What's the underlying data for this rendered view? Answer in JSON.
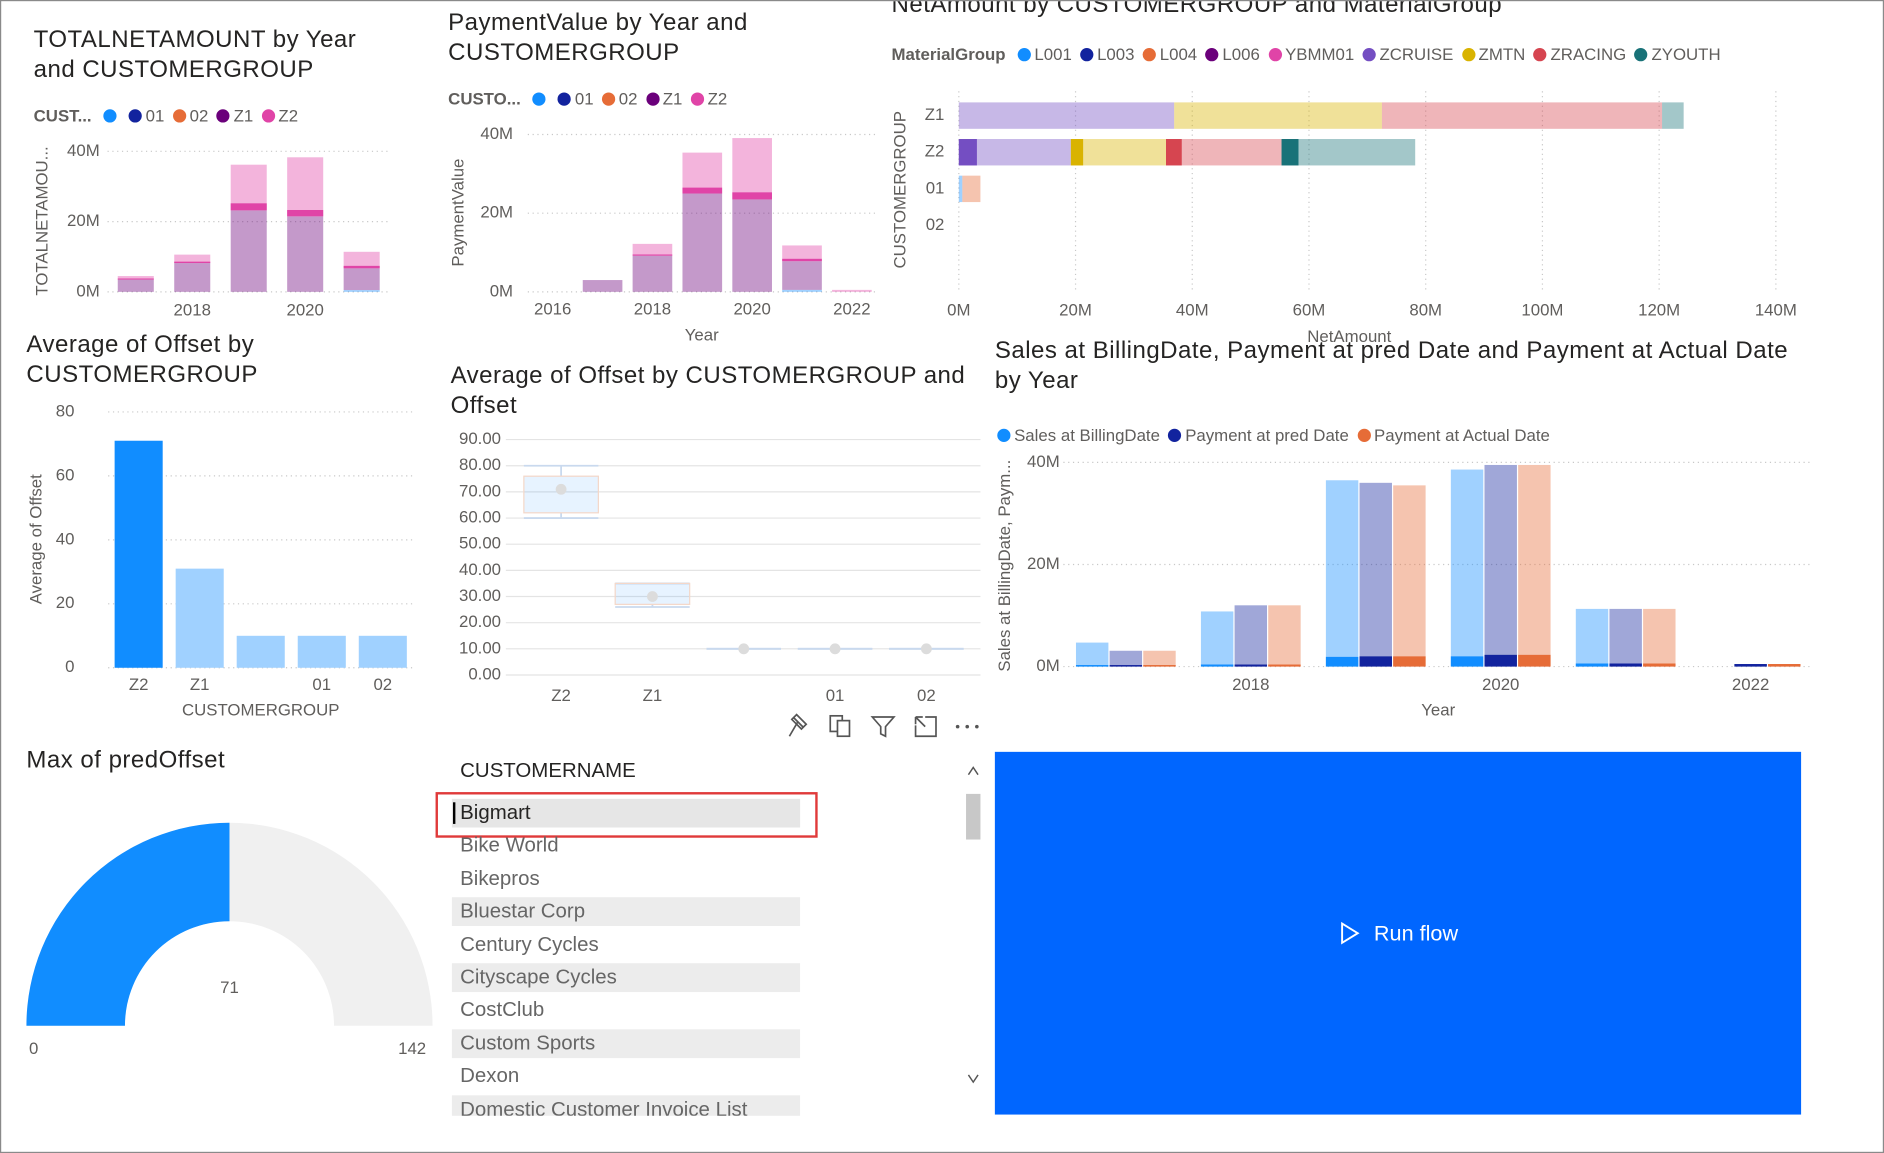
{
  "chart_data": [
    {
      "type": "stacked-column",
      "title": "TOTALNETAMOUNT by Year and CUSTOMERGROUP",
      "legend_title": "CUST...",
      "y_label": "TOTALNETAMOU...",
      "x": [
        2017,
        2018,
        2019,
        2020,
        2021
      ],
      "xlim": [
        2016.5,
        2021.5
      ],
      "xticks": [
        2018,
        2020
      ],
      "ylim": [
        0,
        40000000
      ],
      "yticks": [
        {
          "value": 0,
          "label": "0M"
        },
        {
          "value": 20000000,
          "label": "20M"
        },
        {
          "value": 40000000,
          "label": "40M"
        }
      ],
      "grid": true,
      "series": [
        {
          "name": null,
          "color": "#118DFF",
          "values": [
            0,
            0,
            0,
            0,
            500000
          ]
        },
        {
          "name": "01",
          "color": "#12239E",
          "values": [
            0,
            0,
            0,
            0,
            0
          ]
        },
        {
          "name": "02",
          "color": "#E66C37",
          "values": [
            0,
            0,
            0,
            0,
            0
          ]
        },
        {
          "name": "Z1",
          "color": "#6B007B",
          "values": [
            3500000,
            8200000,
            23200000,
            21500000,
            6200000
          ]
        },
        {
          "name": "Z2",
          "color": "#E044A7",
          "values": [
            1000000,
            2400000,
            13000000,
            16800000,
            4700000
          ],
          "highlights": [
            300000,
            400000,
            2000000,
            1800000,
            700000
          ]
        }
      ]
    },
    {
      "type": "stacked-column",
      "title": "PaymentValue by Year and CUSTOMERGROUP",
      "legend_title": "CUSTO...",
      "y_label": "PaymentValue",
      "x_label": "Year",
      "x": [
        2017,
        2018,
        2019,
        2020,
        2021,
        2022
      ],
      "xlim": [
        2015.5,
        2022.5
      ],
      "xticks": [
        2016,
        2018,
        2020,
        2022
      ],
      "ylim": [
        0,
        40000000
      ],
      "yticks": [
        {
          "value": 0,
          "label": "0M"
        },
        {
          "value": 20000000,
          "label": "20M"
        },
        {
          "value": 40000000,
          "label": "40M"
        }
      ],
      "grid": true,
      "series": [
        {
          "name": null,
          "color": "#118DFF",
          "values": [
            0,
            0,
            0,
            0,
            500000,
            0
          ]
        },
        {
          "name": "01",
          "color": "#12239E",
          "values": [
            0,
            0,
            0,
            0,
            0,
            0
          ]
        },
        {
          "name": "02",
          "color": "#E66C37",
          "values": [
            0,
            0,
            0,
            0,
            0,
            0
          ]
        },
        {
          "name": "Z1",
          "color": "#6B007B",
          "values": [
            3000000,
            9200000,
            25000000,
            23500000,
            7300000,
            0
          ]
        },
        {
          "name": "Z2",
          "color": "#E044A7",
          "values": [
            0,
            3000000,
            10400000,
            15600000,
            4000000,
            500000
          ],
          "highlights": [
            0,
            300000,
            1500000,
            1800000,
            600000,
            0
          ]
        }
      ]
    },
    {
      "type": "stacked-bar",
      "title": "NetAmount by CUSTOMERGROUP and MaterialGroup",
      "legend_title": "MaterialGroup",
      "y_label": "CUSTOMERGROUP",
      "x_label": "NetAmount",
      "categories": [
        "Z1",
        "Z2",
        "01",
        "02"
      ],
      "xlim": [
        0,
        140000000
      ],
      "xticks": [
        {
          "value": 0,
          "label": "0M"
        },
        {
          "value": 20000000,
          "label": "20M"
        },
        {
          "value": 40000000,
          "label": "40M"
        },
        {
          "value": 60000000,
          "label": "60M"
        },
        {
          "value": 80000000,
          "label": "80M"
        },
        {
          "value": 100000000,
          "label": "100M"
        },
        {
          "value": 120000000,
          "label": "120M"
        },
        {
          "value": 140000000,
          "label": "140M"
        }
      ],
      "grid": true,
      "series": [
        {
          "name": "L001",
          "color": "#118DFF",
          "values": [
            0,
            0,
            600000,
            0
          ]
        },
        {
          "name": "L003",
          "color": "#12239E",
          "values": [
            0,
            0,
            0,
            0
          ]
        },
        {
          "name": "L004",
          "color": "#E66C37",
          "values": [
            0,
            0,
            3100000,
            0
          ]
        },
        {
          "name": "L006",
          "color": "#6B007B",
          "values": [
            0,
            0,
            0,
            0
          ]
        },
        {
          "name": "YBMM01",
          "color": "#E044A7",
          "values": [
            0,
            0,
            0,
            0
          ]
        },
        {
          "name": "ZCRUISE",
          "color": "#744EC2",
          "values": [
            36900000,
            19200000,
            0,
            0
          ],
          "highlights": [
            0,
            3100000,
            0,
            0
          ]
        },
        {
          "name": "ZMTN",
          "color": "#D9B300",
          "values": [
            35600000,
            16300000,
            0,
            0
          ],
          "highlights": [
            0,
            2100000,
            0,
            0
          ]
        },
        {
          "name": "ZRACING",
          "color": "#D64550",
          "values": [
            48000000,
            19800000,
            0,
            0
          ],
          "highlights": [
            0,
            2700000,
            0,
            0
          ]
        },
        {
          "name": "ZYOUTH",
          "color": "#197278",
          "values": [
            3700000,
            22900000,
            0,
            0
          ],
          "highlights": [
            0,
            2900000,
            0,
            0
          ]
        }
      ]
    },
    {
      "type": "bar",
      "title": "Average of Offset by CUSTOMERGROUP",
      "y_label": "Average of Offset",
      "x_label": "CUSTOMERGROUP",
      "categories": [
        "Z2",
        "Z1",
        null,
        "01",
        "02"
      ],
      "values": [
        71,
        31,
        10,
        10,
        10
      ],
      "colors": [
        "#118DFF",
        "#A0D1FF",
        "#A0D1FF",
        "#A0D1FF",
        "#A0D1FF"
      ],
      "ylim": [
        0,
        80
      ],
      "yticks": [
        0,
        20,
        40,
        60,
        80
      ],
      "grid": true
    },
    {
      "type": "box",
      "title": "Average of Offset by CUSTOMERGROUP and Offset",
      "color": "#118DFF",
      "categories": [
        "Z2",
        "Z1",
        null,
        "01",
        "02"
      ],
      "min": [
        60,
        26,
        10,
        10,
        10
      ],
      "q1": [
        62,
        27,
        10,
        10,
        10
      ],
      "mean": [
        71,
        30,
        10,
        10,
        10
      ],
      "q3": [
        76,
        35,
        10,
        10,
        10
      ],
      "max": [
        80,
        35,
        10,
        10,
        10
      ],
      "ylim": [
        0,
        90
      ],
      "yticks": [
        {
          "value": 0,
          "label": "0.00"
        },
        {
          "value": 10,
          "label": "10.00"
        },
        {
          "value": 20,
          "label": "20.00"
        },
        {
          "value": 30,
          "label": "30.00"
        },
        {
          "value": 40,
          "label": "40.00"
        },
        {
          "value": 50,
          "label": "50.00"
        },
        {
          "value": 60,
          "label": "60.00"
        },
        {
          "value": 70,
          "label": "70.00"
        },
        {
          "value": 80,
          "label": "80.00"
        },
        {
          "value": 90,
          "label": "90.00"
        }
      ],
      "grid": true
    },
    {
      "type": "grouped-column",
      "title": "Sales at BillingDate, Payment at pred Date and Payment at Actual Date by Year",
      "y_label": "Sales at BillingDate, Paym...",
      "x_label": "Year",
      "x": [
        2017,
        2018,
        2019,
        2020,
        2021,
        2022
      ],
      "xlim": [
        2016.5,
        2022.5
      ],
      "xticks": [
        2018,
        2020,
        2022
      ],
      "ylim": [
        0,
        40000000
      ],
      "yticks": [
        {
          "value": 0,
          "label": "0M"
        },
        {
          "value": 20000000,
          "label": "20M"
        },
        {
          "value": 40000000,
          "label": "40M"
        }
      ],
      "grid": true,
      "series": [
        {
          "name": "Sales at BillingDate",
          "color": "#118DFF",
          "values": [
            4700000,
            10800000,
            36500000,
            38600000,
            11300000,
            0
          ],
          "highlights": [
            300000,
            400000,
            1900000,
            2000000,
            600000,
            0
          ]
        },
        {
          "name": "Payment at pred Date",
          "color": "#12239E",
          "values": [
            3100000,
            12000000,
            36000000,
            39500000,
            11300000,
            500000
          ],
          "highlights": [
            300000,
            400000,
            2000000,
            2300000,
            600000,
            500000
          ]
        },
        {
          "name": "Payment at Actual Date",
          "color": "#E66C37",
          "values": [
            3100000,
            12000000,
            35500000,
            39500000,
            11300000,
            500000
          ],
          "highlights": [
            300000,
            400000,
            2000000,
            2300000,
            600000,
            500000
          ]
        }
      ]
    }
  ],
  "gauge": {
    "title": "Max of predOffset",
    "value": 71,
    "min": 0,
    "max": 142,
    "color": "#118DFF"
  },
  "slicer": {
    "header": "CUSTOMERNAME",
    "selected": 0,
    "items": [
      "Bigmart",
      "Bike World",
      "Bikepros",
      "Bluestar Corp",
      "Century Cycles",
      "Cityscape Cycles",
      "CostClub",
      "Custom Sports",
      "Dexon",
      "Domestic Customer Invoice List"
    ]
  },
  "button": {
    "label": "Run flow"
  }
}
